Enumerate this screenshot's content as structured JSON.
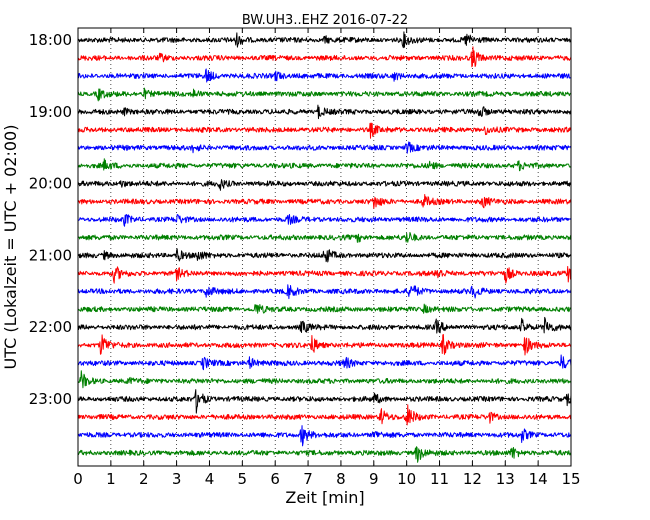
{
  "chart_data": {
    "type": "line",
    "title": "BW.UH3..EHZ 2016-07-22",
    "xlabel": "Zeit  [min]",
    "ylabel": "UTC (Lokalzeit = UTC + 02:00)",
    "xlim": [
      0,
      15
    ],
    "x_ticks": [
      "0",
      "1",
      "2",
      "3",
      "4",
      "5",
      "6",
      "7",
      "8",
      "9",
      "10",
      "11",
      "12",
      "13",
      "14",
      "15"
    ],
    "y_ticks": [
      "18:00",
      "19:00",
      "20:00",
      "21:00",
      "22:00",
      "23:00"
    ],
    "grid": true,
    "trace_minutes": 15,
    "trace_colors": [
      "#000000",
      "#ff0000",
      "#0000ff",
      "#008000"
    ],
    "traces": [
      {
        "start": "18:00",
        "events": [
          {
            "t": 4.8,
            "a": 1.0
          },
          {
            "t": 9.9,
            "a": 1.0
          },
          {
            "t": 11.8,
            "a": 0.9
          },
          {
            "t": 7.5,
            "a": 0.5
          }
        ]
      },
      {
        "start": "18:15",
        "events": [
          {
            "t": 12.0,
            "a": 1.8
          },
          {
            "t": 2.5,
            "a": 0.5
          }
        ]
      },
      {
        "start": "18:30",
        "events": [
          {
            "t": 3.9,
            "a": 1.0
          },
          {
            "t": 6.0,
            "a": 0.8
          },
          {
            "t": 9.6,
            "a": 0.6
          }
        ]
      },
      {
        "start": "18:45",
        "events": [
          {
            "t": 0.6,
            "a": 0.9
          },
          {
            "t": 2.0,
            "a": 0.7
          },
          {
            "t": 3.5,
            "a": 0.6
          }
        ]
      },
      {
        "start": "19:00",
        "events": [
          {
            "t": 7.3,
            "a": 0.9
          },
          {
            "t": 12.2,
            "a": 1.1
          },
          {
            "t": 1.4,
            "a": 0.5
          }
        ]
      },
      {
        "start": "19:15",
        "events": [
          {
            "t": 8.9,
            "a": 1.0
          },
          {
            "t": 12.4,
            "a": 0.6
          }
        ]
      },
      {
        "start": "19:30",
        "events": [
          {
            "t": 10.0,
            "a": 0.9
          },
          {
            "t": 3.5,
            "a": 0.5
          }
        ]
      },
      {
        "start": "19:45",
        "events": [
          {
            "t": 0.8,
            "a": 0.7
          },
          {
            "t": 10.7,
            "a": 0.6
          },
          {
            "t": 13.4,
            "a": 0.6
          }
        ]
      },
      {
        "start": "20:00",
        "events": [
          {
            "t": 4.3,
            "a": 0.8
          },
          {
            "t": 1.3,
            "a": 0.5
          }
        ]
      },
      {
        "start": "20:15",
        "events": [
          {
            "t": 9.0,
            "a": 1.0
          },
          {
            "t": 10.5,
            "a": 1.0
          },
          {
            "t": 12.3,
            "a": 0.9
          }
        ]
      },
      {
        "start": "20:30",
        "events": [
          {
            "t": 1.4,
            "a": 0.8
          },
          {
            "t": 3.0,
            "a": 0.6
          },
          {
            "t": 6.4,
            "a": 0.6
          }
        ]
      },
      {
        "start": "20:45",
        "events": [
          {
            "t": 10.0,
            "a": 0.9
          },
          {
            "t": 8.5,
            "a": 0.5
          }
        ]
      },
      {
        "start": "21:00",
        "events": [
          {
            "t": 3.0,
            "a": 1.0
          },
          {
            "t": 3.6,
            "a": 0.9
          },
          {
            "t": 7.5,
            "a": 1.3
          },
          {
            "t": 0.8,
            "a": 0.5
          }
        ]
      },
      {
        "start": "21:15",
        "events": [
          {
            "t": 1.1,
            "a": 1.2
          },
          {
            "t": 3.0,
            "a": 0.8
          },
          {
            "t": 10.9,
            "a": 1.0
          },
          {
            "t": 13.0,
            "a": 1.3
          },
          {
            "t": 14.9,
            "a": 1.2
          }
        ]
      },
      {
        "start": "21:30",
        "events": [
          {
            "t": 3.9,
            "a": 1.0
          },
          {
            "t": 6.4,
            "a": 1.0
          },
          {
            "t": 10.1,
            "a": 1.3
          },
          {
            "t": 12.0,
            "a": 1.1
          }
        ]
      },
      {
        "start": "21:45",
        "events": [
          {
            "t": 5.4,
            "a": 1.0
          },
          {
            "t": 10.5,
            "a": 0.7
          }
        ]
      },
      {
        "start": "22:00",
        "events": [
          {
            "t": 6.8,
            "a": 1.0
          },
          {
            "t": 10.9,
            "a": 1.0
          },
          {
            "t": 13.5,
            "a": 1.1
          },
          {
            "t": 14.2,
            "a": 1.3
          }
        ]
      },
      {
        "start": "22:15",
        "events": [
          {
            "t": 0.7,
            "a": 1.8
          },
          {
            "t": 7.1,
            "a": 1.4
          },
          {
            "t": 11.1,
            "a": 1.6
          },
          {
            "t": 13.6,
            "a": 1.4
          }
        ]
      },
      {
        "start": "22:30",
        "events": [
          {
            "t": 3.8,
            "a": 0.9
          },
          {
            "t": 5.2,
            "a": 0.9
          },
          {
            "t": 8.1,
            "a": 0.9
          },
          {
            "t": 14.7,
            "a": 1.1
          }
        ]
      },
      {
        "start": "22:45",
        "events": [
          {
            "t": 0.1,
            "a": 1.2
          },
          {
            "t": 1.5,
            "a": 0.4
          }
        ]
      },
      {
        "start": "23:00",
        "events": [
          {
            "t": 3.6,
            "a": 1.8
          },
          {
            "t": 9.0,
            "a": 0.7
          },
          {
            "t": 14.9,
            "a": 1.1
          }
        ]
      },
      {
        "start": "23:15",
        "events": [
          {
            "t": 9.2,
            "a": 1.4
          },
          {
            "t": 10.0,
            "a": 1.9
          },
          {
            "t": 12.5,
            "a": 0.8
          }
        ]
      },
      {
        "start": "23:30",
        "events": [
          {
            "t": 6.8,
            "a": 1.8
          },
          {
            "t": 13.5,
            "a": 0.9
          },
          {
            "t": 9.0,
            "a": 0.6
          }
        ]
      },
      {
        "start": "23:45",
        "events": [
          {
            "t": 10.3,
            "a": 1.5
          },
          {
            "t": 13.2,
            "a": 1.0
          }
        ]
      }
    ]
  }
}
